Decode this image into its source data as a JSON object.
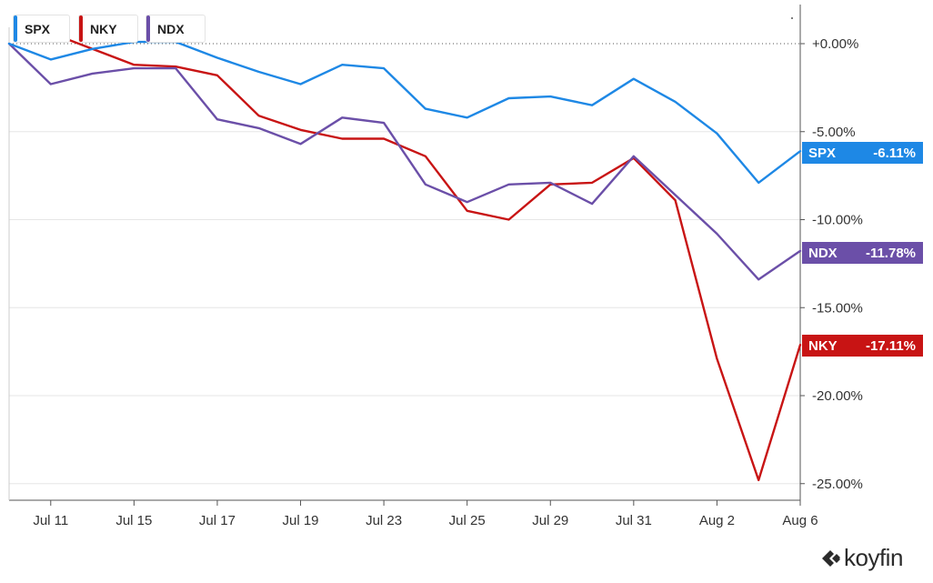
{
  "legend": [
    {
      "name": "SPX",
      "color": "#1e88e5"
    },
    {
      "name": "NKY",
      "color": "#c81414"
    },
    {
      "name": "NDX",
      "color": "#6b4fa8"
    }
  ],
  "brand": {
    "name": "koyfin"
  },
  "end_labels": [
    {
      "name": "SPX",
      "value": "-6.11%"
    },
    {
      "name": "NDX",
      "value": "-11.78%"
    },
    {
      "name": "NKY",
      "value": "-17.11%"
    }
  ],
  "chart_data": {
    "type": "line",
    "title": "",
    "xlabel": "",
    "ylabel": "",
    "x_tick_labels": [
      "Jul 11",
      "Jul 15",
      "Jul 17",
      "Jul 19",
      "Jul 23",
      "Jul 25",
      "Jul 29",
      "Jul 31",
      "Aug 2",
      "Aug 6"
    ],
    "y_tick_labels": [
      "+0.00%",
      "-5.00%",
      "-10.00%",
      "-15.00%",
      "-20.00%",
      "-25.00%"
    ],
    "y_ticks": [
      0,
      -5,
      -10,
      -15,
      -20,
      -25
    ],
    "ylim": [
      -25.8,
      2
    ],
    "grid": true,
    "legend_position": "top-left",
    "x": [
      "Jul 10",
      "Jul 11",
      "Jul 12",
      "Jul 15",
      "Jul 16",
      "Jul 17",
      "Jul 18",
      "Jul 19",
      "Jul 22",
      "Jul 23",
      "Jul 24",
      "Jul 25",
      "Jul 26",
      "Jul 29",
      "Jul 30",
      "Jul 31",
      "Aug 1",
      "Aug 2",
      "Aug 5",
      "Aug 6"
    ],
    "series": [
      {
        "name": "SPX",
        "color": "#1e88e5",
        "last_label": "-6.11%",
        "values": [
          0.0,
          -0.9,
          -0.3,
          0.1,
          0.1,
          -0.8,
          -1.6,
          -2.3,
          -1.2,
          -1.4,
          -3.7,
          -4.2,
          -3.1,
          -3.0,
          -3.5,
          -2.0,
          -3.3,
          -5.1,
          -7.9,
          -6.11
        ]
      },
      {
        "name": "NKY",
        "color": "#c81414",
        "last_label": "-17.11%",
        "values": [
          null,
          null,
          null,
          -1.2,
          -1.3,
          -1.8,
          -4.1,
          -4.9,
          -5.4,
          -5.4,
          -6.4,
          -9.5,
          -10.0,
          -8.0,
          -7.9,
          -6.5,
          -8.9,
          -17.9,
          -24.8,
          -17.11
        ]
      },
      {
        "name": "NDX",
        "color": "#6b4fa8",
        "last_label": "-11.78%",
        "values": [
          0.0,
          -2.3,
          -1.7,
          -1.4,
          -1.4,
          -4.3,
          -4.8,
          -5.7,
          -4.2,
          -4.5,
          -8.0,
          -9.0,
          -8.0,
          -7.9,
          -9.1,
          -6.4,
          -8.6,
          -10.8,
          -13.4,
          -11.78
        ]
      }
    ]
  }
}
